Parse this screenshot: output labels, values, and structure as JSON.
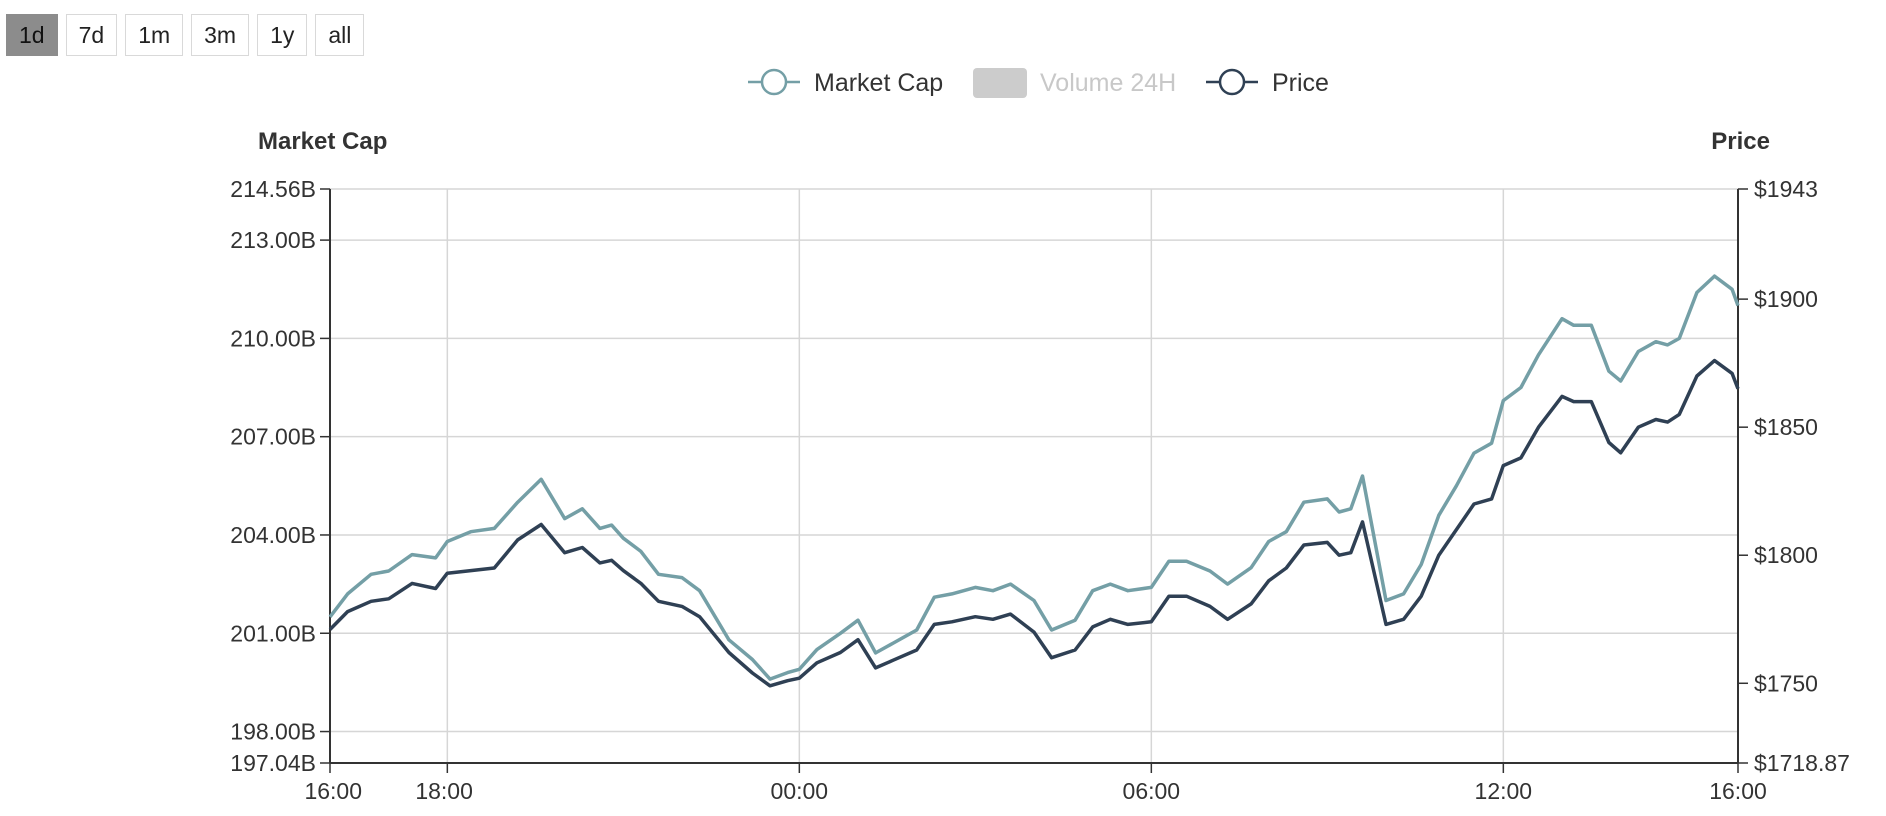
{
  "range_selector": {
    "options": [
      "1d",
      "7d",
      "1m",
      "3m",
      "1y",
      "all"
    ],
    "active": "1d"
  },
  "legend": {
    "market_cap": "Market Cap",
    "volume": "Volume 24H",
    "price": "Price"
  },
  "colors": {
    "market_cap": "#749fa6",
    "price": "#2f4054",
    "volume_disabled": "#cccccc",
    "grid": "#d6d6d6",
    "axis": "#333333"
  },
  "chart_data": {
    "type": "line",
    "x_ticks": [
      "16:00",
      "18:00",
      "00:00",
      "06:00",
      "12:00",
      "16:00"
    ],
    "x_tick_hours": [
      0,
      2,
      8,
      14,
      20,
      24
    ],
    "left_axis": {
      "title": "Market Cap",
      "ylim": [
        197.04,
        214.56
      ],
      "ticks": [
        197.04,
        198,
        201,
        204,
        207,
        210,
        213,
        214.56
      ],
      "tick_labels": [
        "197.04B",
        "198.00B",
        "201.00B",
        "204.00B",
        "207.00B",
        "210.00B",
        "213.00B",
        "214.56B"
      ],
      "unit": "B"
    },
    "right_axis": {
      "title": "Price",
      "ylim": [
        1718.87,
        1943
      ],
      "ticks": [
        1718.87,
        1750,
        1800,
        1850,
        1900,
        1943
      ],
      "tick_labels": [
        "$1718.87",
        "$1750",
        "$1800",
        "$1850",
        "$1900",
        "$1943"
      ]
    },
    "grid": true,
    "legend_position": "top-center",
    "series": [
      {
        "name": "Market Cap",
        "axis": "left",
        "hours": [
          0,
          0.3,
          0.7,
          1.0,
          1.4,
          1.8,
          2.0,
          2.4,
          2.8,
          3.2,
          3.6,
          4.0,
          4.3,
          4.6,
          4.8,
          5.0,
          5.3,
          5.6,
          6.0,
          6.3,
          6.8,
          7.2,
          7.5,
          7.8,
          8.0,
          8.3,
          8.7,
          9.0,
          9.3,
          9.6,
          10.0,
          10.3,
          10.6,
          11.0,
          11.3,
          11.6,
          12.0,
          12.3,
          12.7,
          13.0,
          13.3,
          13.6,
          14.0,
          14.3,
          14.6,
          15.0,
          15.3,
          15.7,
          16.0,
          16.3,
          16.6,
          17.0,
          17.2,
          17.4,
          17.6,
          18.0,
          18.3,
          18.6,
          18.9,
          19.2,
          19.5,
          19.8,
          20.0,
          20.3,
          20.6,
          21.0,
          21.2,
          21.5,
          21.8,
          22.0,
          22.3,
          22.6,
          22.8,
          23.0,
          23.3,
          23.6,
          23.9,
          24.0
        ],
        "values": [
          201.5,
          202.2,
          202.8,
          202.9,
          203.4,
          203.3,
          203.8,
          204.1,
          204.2,
          205.0,
          205.7,
          204.5,
          204.8,
          204.2,
          204.3,
          203.9,
          203.5,
          202.8,
          202.7,
          202.3,
          200.8,
          200.2,
          199.6,
          199.8,
          199.9,
          200.5,
          201.0,
          201.4,
          200.4,
          200.7,
          201.1,
          202.1,
          202.2,
          202.4,
          202.3,
          202.5,
          202.0,
          201.1,
          201.4,
          202.3,
          202.5,
          202.3,
          202.4,
          203.2,
          203.2,
          202.9,
          202.5,
          203.0,
          203.8,
          204.1,
          205.0,
          205.1,
          204.7,
          204.8,
          205.8,
          202.0,
          202.2,
          203.1,
          204.6,
          205.5,
          206.5,
          206.8,
          208.1,
          208.5,
          209.5,
          210.6,
          210.4,
          210.4,
          209.0,
          208.7,
          209.6,
          209.9,
          209.8,
          210.0,
          211.4,
          211.9,
          211.5,
          211.0
        ]
      },
      {
        "name": "Price",
        "axis": "right",
        "hours": [
          0,
          0.3,
          0.7,
          1.0,
          1.4,
          1.8,
          2.0,
          2.4,
          2.8,
          3.2,
          3.6,
          4.0,
          4.3,
          4.6,
          4.8,
          5.0,
          5.3,
          5.6,
          6.0,
          6.3,
          6.8,
          7.2,
          7.5,
          7.8,
          8.0,
          8.3,
          8.7,
          9.0,
          9.3,
          9.6,
          10.0,
          10.3,
          10.6,
          11.0,
          11.3,
          11.6,
          12.0,
          12.3,
          12.7,
          13.0,
          13.3,
          13.6,
          14.0,
          14.3,
          14.6,
          15.0,
          15.3,
          15.7,
          16.0,
          16.3,
          16.6,
          17.0,
          17.2,
          17.4,
          17.6,
          18.0,
          18.3,
          18.6,
          18.9,
          19.2,
          19.5,
          19.8,
          20.0,
          20.3,
          20.6,
          21.0,
          21.2,
          21.5,
          21.8,
          22.0,
          22.3,
          22.6,
          22.8,
          23.0,
          23.3,
          23.6,
          23.9,
          24.0
        ],
        "values": [
          1771,
          1778,
          1782,
          1783,
          1789,
          1787,
          1793,
          1794,
          1795,
          1806,
          1812,
          1801,
          1803,
          1797,
          1798,
          1794,
          1789,
          1782,
          1780,
          1776,
          1762,
          1754,
          1749,
          1751,
          1752,
          1758,
          1762,
          1767,
          1756,
          1759,
          1763,
          1773,
          1774,
          1776,
          1775,
          1777,
          1770,
          1760,
          1763,
          1772,
          1775,
          1773,
          1774,
          1784,
          1784,
          1780,
          1775,
          1781,
          1790,
          1795,
          1804,
          1805,
          1800,
          1801,
          1813,
          1773,
          1775,
          1784,
          1800,
          1810,
          1820,
          1822,
          1835,
          1838,
          1850,
          1862,
          1860,
          1860,
          1844,
          1840,
          1850,
          1853,
          1852,
          1855,
          1870,
          1876,
          1871,
          1865
        ]
      }
    ]
  }
}
